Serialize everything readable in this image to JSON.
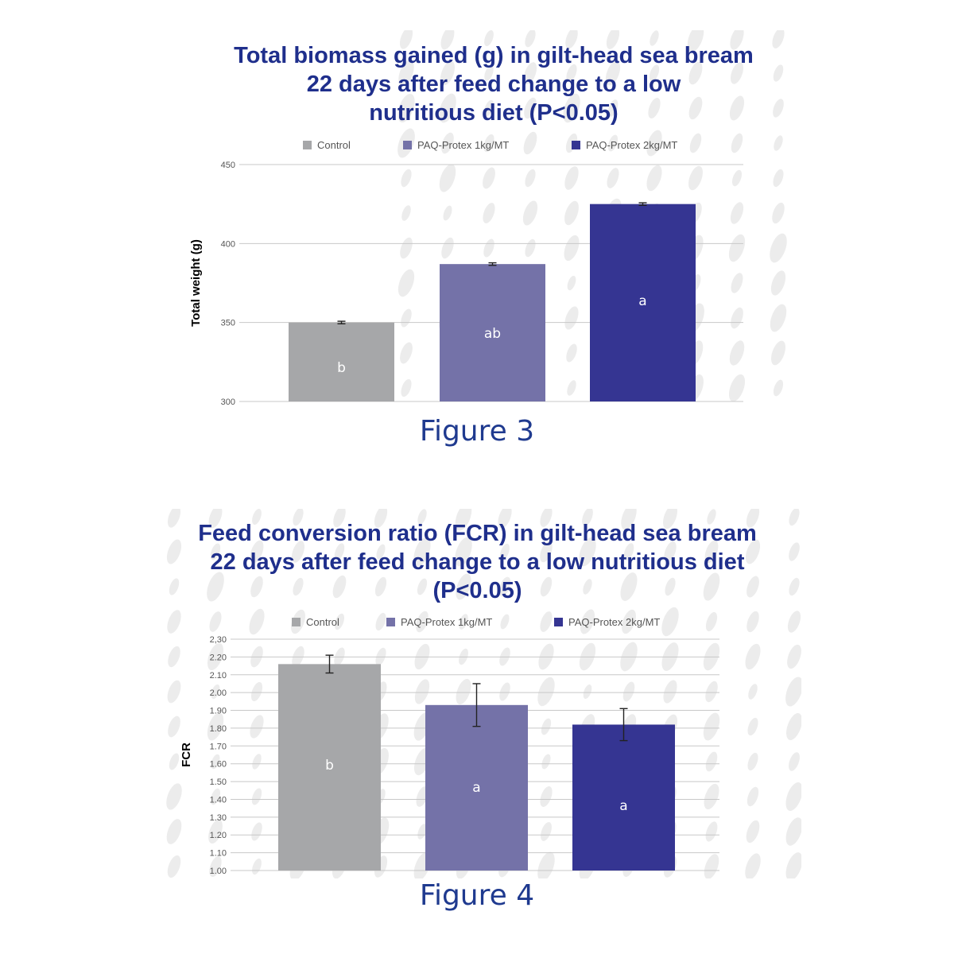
{
  "charts": [
    {
      "title_lines": [
        "Total biomass gained (g) in gilt-head sea bream",
        "22 days after feed change to a low",
        "nutritious diet (P<0.05)"
      ],
      "caption": "Figure 3",
      "chart_data": {
        "type": "bar",
        "title": "Total biomass gained (g) in gilt-head sea bream 22 days after feed change to a low nutritious diet (P<0.05)",
        "ylabel": "Total weight (g)",
        "xlabel": "",
        "ylim": [
          300,
          450
        ],
        "yticks": [
          "300",
          "350",
          "400",
          "450"
        ],
        "grid": true,
        "legend": "top",
        "categories": [
          "Control",
          "PAQ-Protex 1kg/MT",
          "PAQ-Protex 2kg/MT"
        ],
        "values": [
          350,
          387,
          425
        ],
        "errors": [
          0.8,
          0.8,
          0.8
        ],
        "bar_labels": [
          "b",
          "ab",
          "a"
        ],
        "colors": [
          "#a6a7a9",
          "#7472a8",
          "#353592"
        ]
      }
    },
    {
      "title_lines": [
        "Feed conversion ratio (FCR) in gilt-head sea bream",
        "22 days after feed change to a low nutritious diet",
        "(P<0.05)"
      ],
      "caption": "Figure 4",
      "chart_data": {
        "type": "bar",
        "title": "Feed conversion ratio (FCR) in gilt-head sea bream 22 days after feed change to a low nutritious diet (P<0.05)",
        "ylabel": "FCR",
        "xlabel": "",
        "ylim": [
          1.0,
          2.3
        ],
        "yticks": [
          "1.00",
          "1.10",
          "1.20",
          "1.30",
          "1.40",
          "1.50",
          "1.60",
          "1.70",
          "1.80",
          "1.90",
          "2.00",
          "2.10",
          "2.20",
          "2,30"
        ],
        "grid": true,
        "legend": "top",
        "categories": [
          "Control",
          "PAQ-Protex 1kg/MT",
          "PAQ-Protex 2kg/MT"
        ],
        "values": [
          2.16,
          1.93,
          1.82
        ],
        "errors": [
          0.05,
          0.12,
          0.09
        ],
        "bar_labels": [
          "b",
          "a",
          "a"
        ],
        "colors": [
          "#a6a7a9",
          "#7472a8",
          "#353592"
        ]
      }
    }
  ]
}
